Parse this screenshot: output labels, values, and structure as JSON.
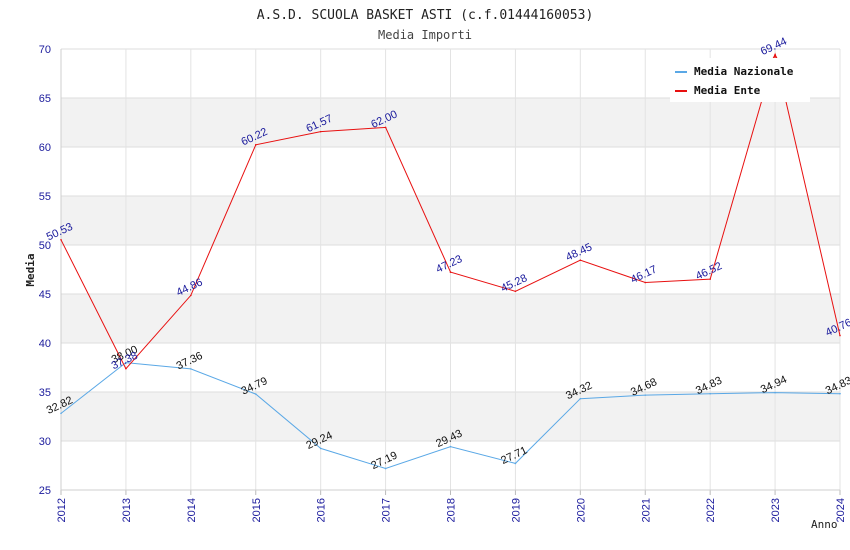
{
  "chart_data": {
    "type": "line",
    "title": "A.S.D. SCUOLA BASKET ASTI (c.f.01444160053)",
    "subtitle": "Media Importi",
    "xlabel": "Anno",
    "ylabel": "Media",
    "categories": [
      "2012",
      "2013",
      "2014",
      "2015",
      "2016",
      "2017",
      "2018",
      "2019",
      "2020",
      "2021",
      "2022",
      "2023",
      "2024"
    ],
    "yticks": [
      25,
      30,
      35,
      40,
      45,
      50,
      55,
      60,
      65,
      70
    ],
    "ylim": [
      25,
      70
    ],
    "series": [
      {
        "name": "Media Nazionale",
        "color": "#5aa8e6",
        "values": [
          32.82,
          38.0,
          37.36,
          34.79,
          29.24,
          27.19,
          29.43,
          27.71,
          34.32,
          34.68,
          34.83,
          34.94,
          34.83
        ],
        "labels": [
          "32.82",
          "38.00",
          "37.36",
          "34.79",
          "29.24",
          "27.19",
          "29.43",
          "27.71",
          "34.32",
          "34.68",
          "34.83",
          "34.94",
          "34.83"
        ]
      },
      {
        "name": "Media Ente",
        "color": "#e81010",
        "values": [
          50.53,
          37.38,
          44.86,
          60.22,
          61.57,
          62.0,
          47.23,
          45.28,
          48.45,
          46.17,
          46.52,
          69.44,
          40.76
        ],
        "labels": [
          "50.53",
          "37.38",
          "44.86",
          "60.22",
          "61.57",
          "62.00",
          "47.23",
          "45.28",
          "48.45",
          "46.17",
          "46.52",
          "69.44",
          "40.76"
        ]
      }
    ],
    "legend": "top-right"
  }
}
